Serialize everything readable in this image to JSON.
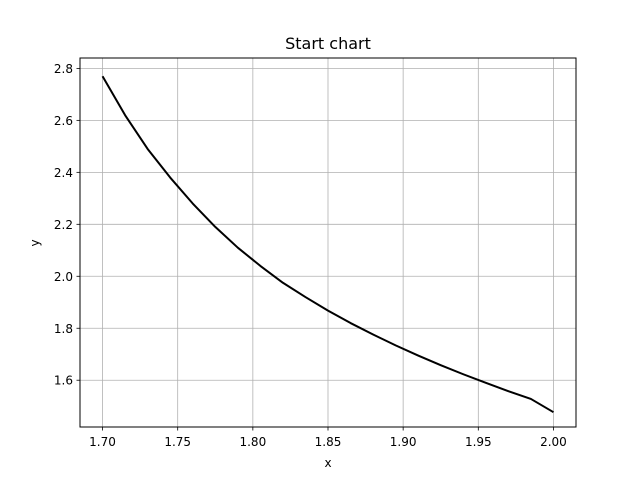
{
  "chart_data": {
    "type": "line",
    "title": "Start chart",
    "xlabel": "x",
    "ylabel": "y",
    "xlim": [
      1.685,
      2.015
    ],
    "ylim": [
      1.42,
      2.84
    ],
    "xticks": [
      1.7,
      1.75,
      1.8,
      1.85,
      1.9,
      1.95,
      2.0
    ],
    "xtick_labels": [
      "1.70",
      "1.75",
      "1.80",
      "1.85",
      "1.90",
      "1.95",
      "2.00"
    ],
    "yticks": [
      1.6,
      1.8,
      2.0,
      2.2,
      2.4,
      2.6,
      2.8
    ],
    "ytick_labels": [
      "1.6",
      "1.8",
      "2.0",
      "2.2",
      "2.4",
      "2.6",
      "2.8"
    ],
    "grid": true,
    "series": [
      {
        "color": "#000000",
        "x": [
          1.7,
          1.715,
          1.73,
          1.745,
          1.76,
          1.775,
          1.79,
          1.805,
          1.82,
          1.835,
          1.85,
          1.865,
          1.88,
          1.895,
          1.91,
          1.925,
          1.94,
          1.955,
          1.97,
          1.985,
          2.0
        ],
        "y": [
          2.77,
          2.62,
          2.49,
          2.38,
          2.28,
          2.19,
          2.11,
          2.04,
          1.975,
          1.92,
          1.868,
          1.82,
          1.776,
          1.734,
          1.695,
          1.658,
          1.623,
          1.59,
          1.558,
          1.528,
          1.477
        ]
      }
    ]
  }
}
